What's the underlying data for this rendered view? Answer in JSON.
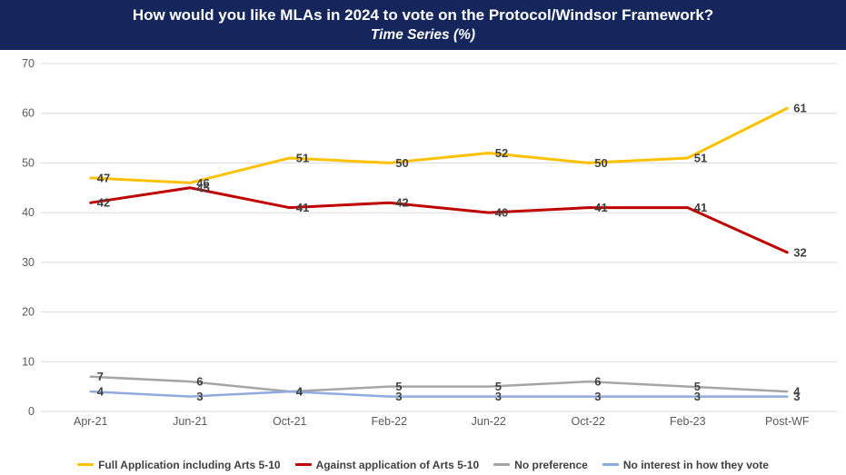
{
  "header": {
    "title": "How would you like MLAs in 2024 to vote on the Protocol/Windsor Framework?",
    "subtitle": "Time Series (%)",
    "background_color": "#14265C",
    "text_color": "#FFFFFF"
  },
  "chart_data": {
    "type": "line",
    "title": "How would you like MLAs in 2024 to vote on the Protocol/Windsor Framework?",
    "subtitle": "Time Series (%)",
    "categories": [
      "Apr-21",
      "Jun-21",
      "Oct-21",
      "Feb-22",
      "Jun-22",
      "Oct-22",
      "Feb-23",
      "Post-WF"
    ],
    "series": [
      {
        "name": "Full Application including Arts 5-10",
        "color": "#FFC000",
        "stroke_width": 3,
        "values": [
          47,
          46,
          51,
          50,
          52,
          50,
          51,
          61
        ]
      },
      {
        "name": "Against application of Arts 5-10",
        "color": "#C00000",
        "stroke_width": 3,
        "values": [
          42,
          45,
          41,
          42,
          40,
          41,
          41,
          32
        ]
      },
      {
        "name": "No preference",
        "color": "#A5A5A5",
        "stroke_width": 2.5,
        "values": [
          7,
          6,
          4,
          5,
          5,
          6,
          5,
          4
        ]
      },
      {
        "name": "No interest in how they vote",
        "color": "#8FAADC",
        "stroke_width": 2.5,
        "values": [
          4,
          3,
          4,
          3,
          3,
          3,
          3,
          3
        ]
      }
    ],
    "y_ticks": [
      0,
      10,
      20,
      30,
      40,
      50,
      60,
      70
    ],
    "ylim": [
      0,
      70
    ],
    "xlabel": "",
    "ylabel": "",
    "grid": true,
    "data_labels": true,
    "legend_position": "bottom",
    "gridline_color": "#D9D9D9",
    "axis_label_color": "#595959",
    "data_label_color": "#404040"
  }
}
